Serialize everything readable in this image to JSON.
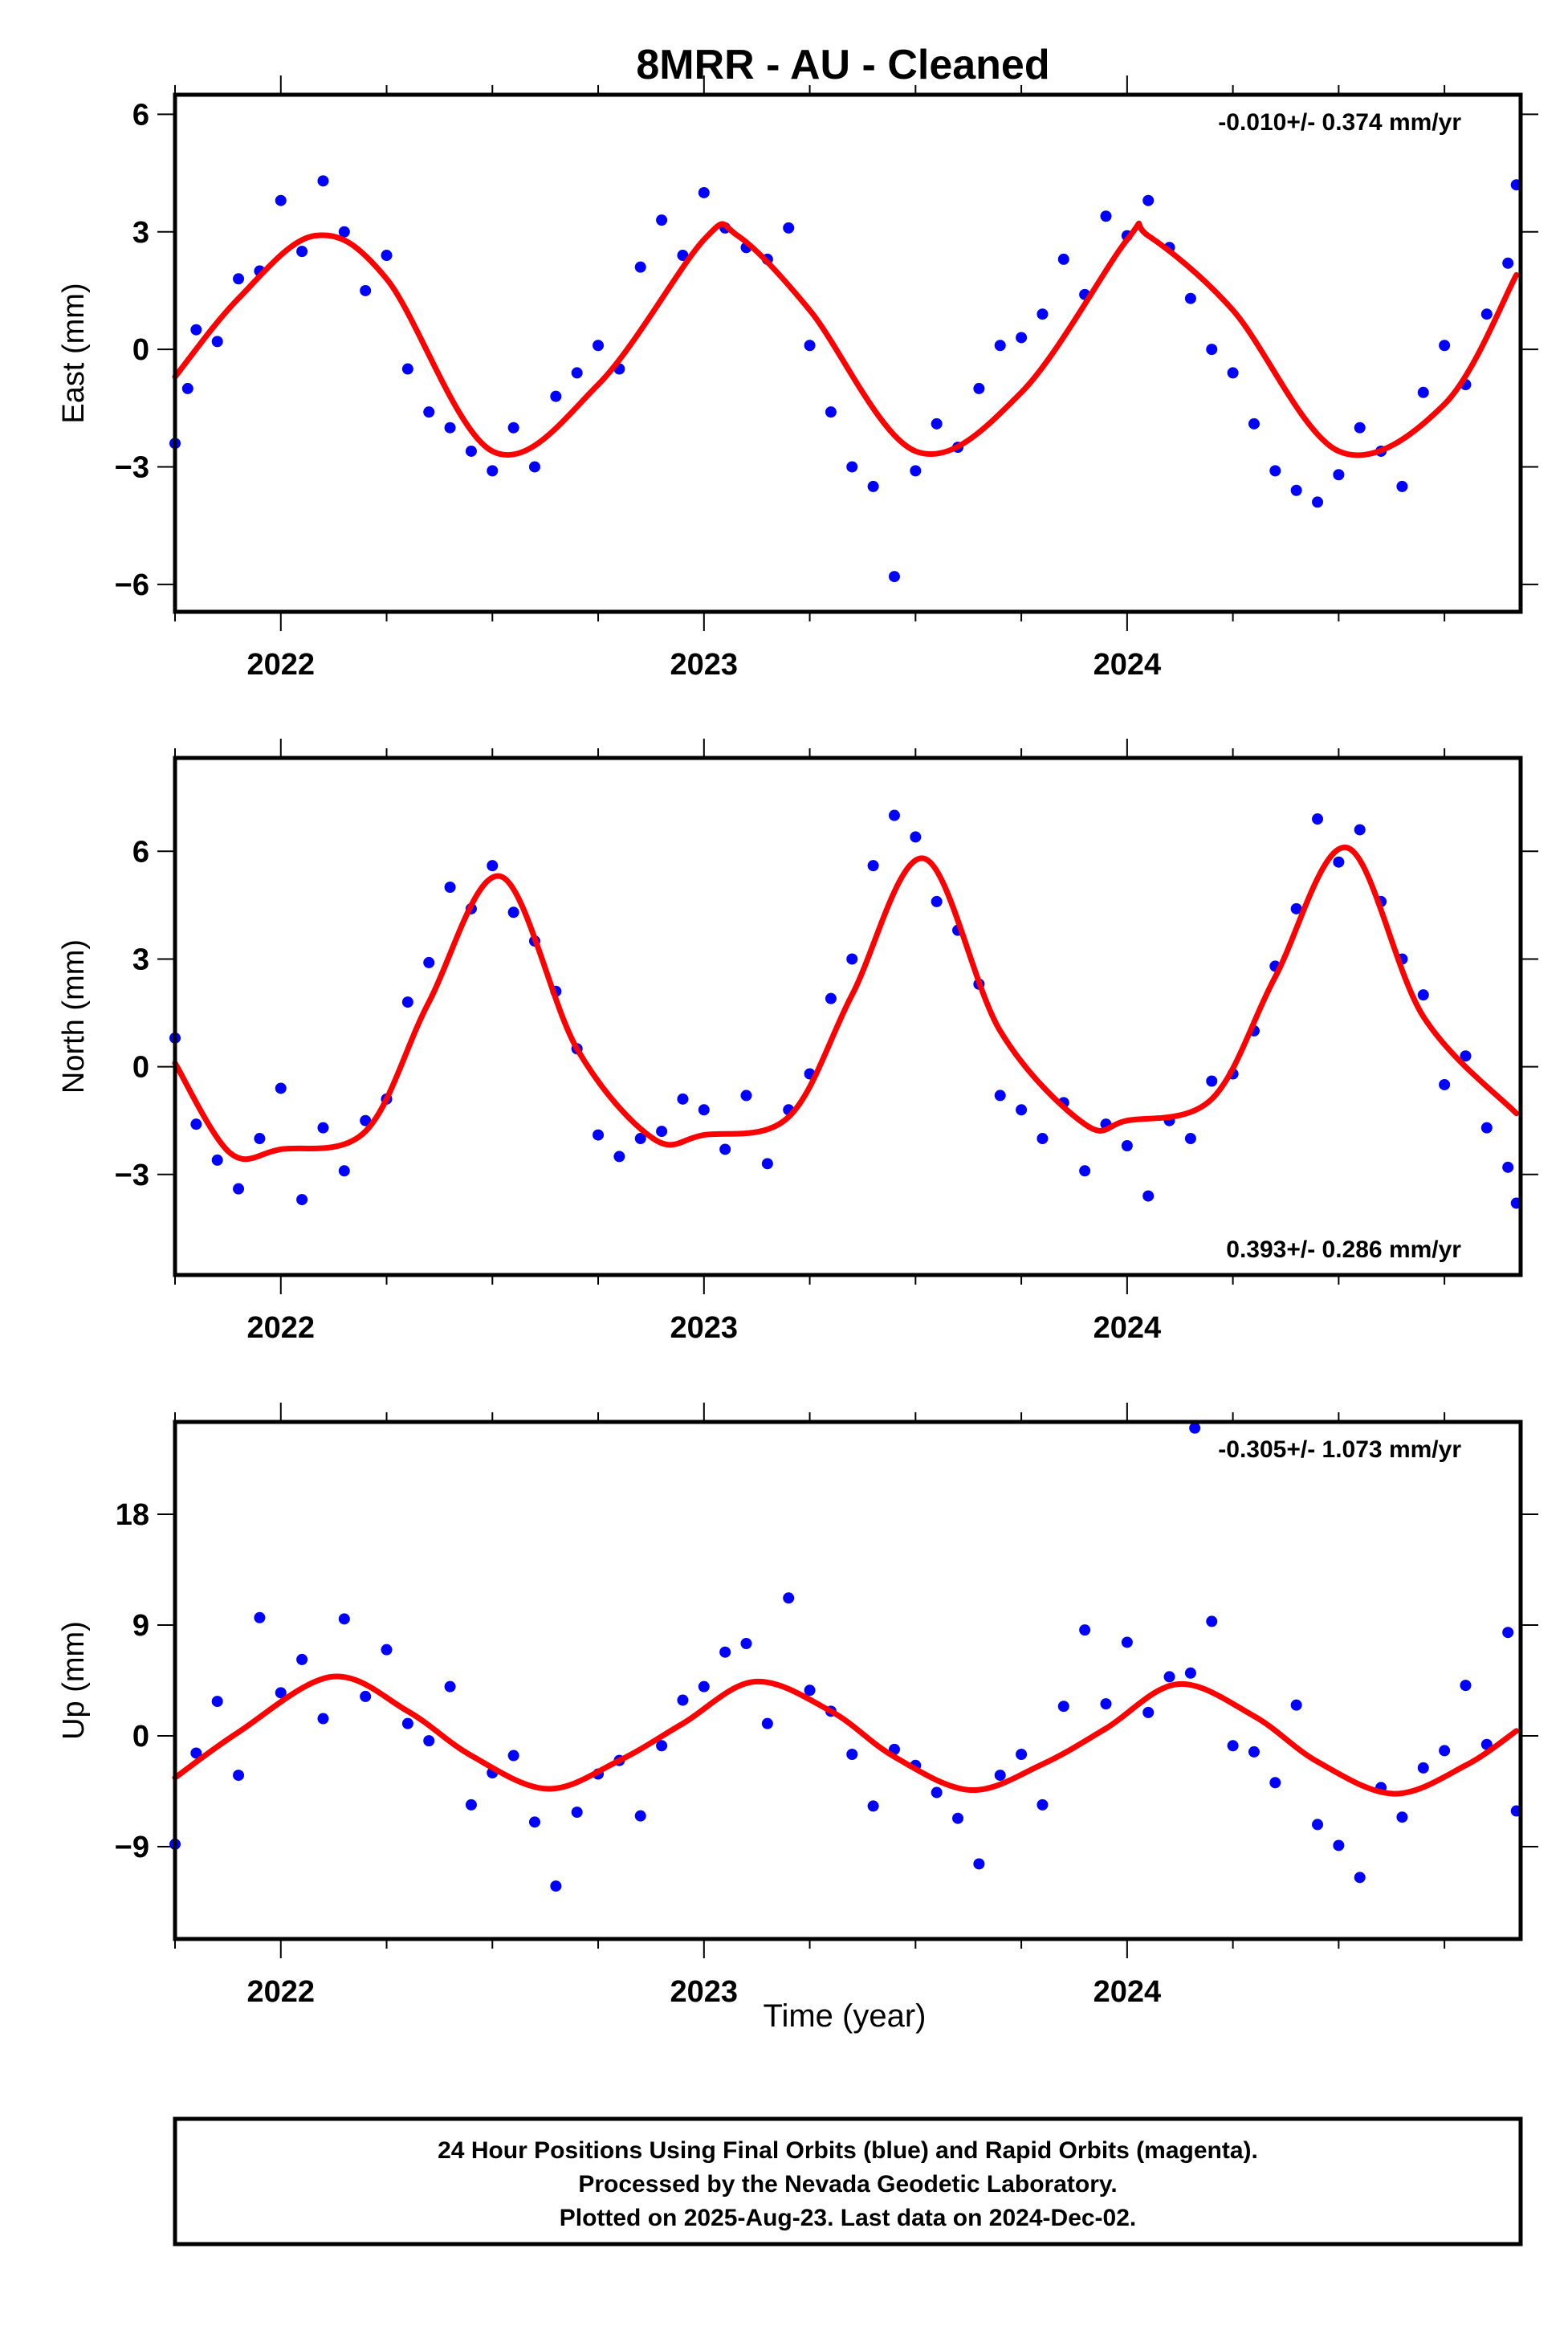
{
  "title": "8MRR  - AU - Cleaned",
  "x_axis_label": "Time (year)",
  "footer_lines": [
    "24 Hour Positions Using Final Orbits (blue) and Rapid Orbits (magenta).",
    "Processed by the Nevada Geodetic Laboratory.",
    "Plotted on 2025-Aug-23. Last data on 2024-Dec-02."
  ],
  "colors": {
    "points": "#0000ff",
    "model": "#ff0000",
    "frame": "#000000"
  },
  "chart_data": [
    {
      "type": "scatter",
      "ylabel": "East (mm)",
      "rate_text": "-0.010+/- 0.374 mm/yr",
      "rate_position": "top-right",
      "xlim": [
        2021.75,
        2024.93
      ],
      "ylim": [
        -6.7,
        6.5
      ],
      "x_ticks": [
        2022,
        2023,
        2024
      ],
      "x_tick_labels": [
        "2022",
        "2023",
        "2024"
      ],
      "y_ticks": [
        -6,
        -3,
        0,
        3,
        6
      ],
      "y_tick_labels": [
        "−6",
        "−3",
        "0",
        "3",
        "6"
      ],
      "grid": false,
      "model_curve": {
        "x": [
          2021.75,
          2021.9,
          2022.08,
          2022.25,
          2022.5,
          2022.75,
          2023.0,
          2023.08,
          2023.25,
          2023.5,
          2023.75,
          2024.0,
          2024.05,
          2024.25,
          2024.5,
          2024.75,
          2024.92
        ],
        "y": [
          -0.7,
          1.3,
          2.9,
          1.8,
          -2.6,
          -0.9,
          2.8,
          2.9,
          1.0,
          -2.6,
          -1.1,
          2.8,
          2.9,
          1.0,
          -2.6,
          -1.4,
          1.9
        ]
      },
      "points": {
        "x": [
          2021.75,
          2021.78,
          2021.8,
          2021.85,
          2021.9,
          2021.95,
          2022.0,
          2022.05,
          2022.1,
          2022.15,
          2022.2,
          2022.25,
          2022.3,
          2022.35,
          2022.4,
          2022.45,
          2022.5,
          2022.55,
          2022.6,
          2022.65,
          2022.7,
          2022.75,
          2022.8,
          2022.85,
          2022.9,
          2022.95,
          2023.0,
          2023.05,
          2023.1,
          2023.15,
          2023.2,
          2023.25,
          2023.3,
          2023.35,
          2023.4,
          2023.45,
          2023.5,
          2023.55,
          2023.6,
          2023.65,
          2023.7,
          2023.75,
          2023.8,
          2023.85,
          2023.9,
          2023.95,
          2024.0,
          2024.05,
          2024.1,
          2024.15,
          2024.2,
          2024.25,
          2024.3,
          2024.35,
          2024.4,
          2024.45,
          2024.5,
          2024.55,
          2024.6,
          2024.65,
          2024.7,
          2024.75,
          2024.8,
          2024.85,
          2024.9,
          2024.92
        ],
        "y": [
          -2.4,
          -1.0,
          0.5,
          0.2,
          1.8,
          2.0,
          3.8,
          2.5,
          4.3,
          3.0,
          1.5,
          2.4,
          -0.5,
          -1.6,
          -2.0,
          -2.6,
          -3.1,
          -2.0,
          -3.0,
          -1.2,
          -0.6,
          0.1,
          -0.5,
          2.1,
          3.3,
          2.4,
          4.0,
          3.1,
          2.6,
          2.3,
          3.1,
          0.1,
          -1.6,
          -3.0,
          -3.5,
          -5.8,
          -3.1,
          -1.9,
          -2.5,
          -1.0,
          0.1,
          0.3,
          0.9,
          2.3,
          1.4,
          3.4,
          2.9,
          3.8,
          2.6,
          1.3,
          0.0,
          -0.6,
          -1.9,
          -3.1,
          -3.6,
          -3.9,
          -3.2,
          -2.0,
          -2.6,
          -3.5,
          -1.1,
          0.1,
          -0.9,
          0.9,
          2.2,
          4.2
        ]
      }
    },
    {
      "type": "scatter",
      "ylabel": "North (mm)",
      "rate_text": "0.393+/- 0.286 mm/yr",
      "rate_position": "bottom-right",
      "xlim": [
        2021.75,
        2024.93
      ],
      "ylim": [
        -5.8,
        8.6
      ],
      "x_ticks": [
        2022,
        2023,
        2024
      ],
      "x_tick_labels": [
        "2022",
        "2023",
        "2024"
      ],
      "y_ticks": [
        -3,
        0,
        3,
        6
      ],
      "y_tick_labels": [
        "−3",
        "0",
        "3",
        "6"
      ],
      "grid": false,
      "model_curve": {
        "x": [
          2021.75,
          2021.88,
          2022.0,
          2022.2,
          2022.35,
          2022.52,
          2022.7,
          2022.88,
          2023.0,
          2023.2,
          2023.35,
          2023.52,
          2023.7,
          2023.9,
          2024.0,
          2024.2,
          2024.35,
          2024.52,
          2024.7,
          2024.92
        ],
        "y": [
          0.1,
          -2.4,
          -2.3,
          -1.8,
          1.8,
          5.3,
          0.5,
          -2.0,
          -1.9,
          -1.4,
          2.0,
          5.8,
          1.0,
          -1.6,
          -1.5,
          -0.9,
          2.5,
          6.1,
          1.4,
          -1.3
        ]
      },
      "points": {
        "x": [
          2021.75,
          2021.8,
          2021.85,
          2021.9,
          2021.95,
          2022.0,
          2022.05,
          2022.1,
          2022.15,
          2022.2,
          2022.25,
          2022.3,
          2022.35,
          2022.4,
          2022.45,
          2022.5,
          2022.55,
          2022.6,
          2022.65,
          2022.7,
          2022.75,
          2022.8,
          2022.85,
          2022.9,
          2022.95,
          2023.0,
          2023.05,
          2023.1,
          2023.15,
          2023.2,
          2023.25,
          2023.3,
          2023.35,
          2023.4,
          2023.45,
          2023.5,
          2023.55,
          2023.6,
          2023.65,
          2023.7,
          2023.75,
          2023.8,
          2023.85,
          2023.9,
          2023.95,
          2024.0,
          2024.05,
          2024.1,
          2024.15,
          2024.2,
          2024.25,
          2024.3,
          2024.35,
          2024.4,
          2024.45,
          2024.5,
          2024.55,
          2024.6,
          2024.65,
          2024.7,
          2024.75,
          2024.8,
          2024.85,
          2024.9,
          2024.92
        ],
        "y": [
          0.8,
          -1.6,
          -2.6,
          -3.4,
          -2.0,
          -0.6,
          -3.7,
          -1.7,
          -2.9,
          -1.5,
          -0.9,
          1.8,
          2.9,
          5.0,
          4.4,
          5.6,
          4.3,
          3.5,
          2.1,
          0.5,
          -1.9,
          -2.5,
          -2.0,
          -1.8,
          -0.9,
          -1.2,
          -2.3,
          -0.8,
          -2.7,
          -1.2,
          -0.2,
          1.9,
          3.0,
          5.6,
          7.0,
          6.4,
          4.6,
          3.8,
          2.3,
          -0.8,
          -1.2,
          -2.0,
          -1.0,
          -2.9,
          -1.6,
          -2.2,
          -3.6,
          -1.5,
          -2.0,
          -0.4,
          -0.2,
          1.0,
          2.8,
          4.4,
          6.9,
          5.7,
          6.6,
          4.6,
          3.0,
          2.0,
          -0.5,
          0.3,
          -1.7,
          -2.8,
          -3.8
        ]
      }
    },
    {
      "type": "scatter",
      "ylabel": "Up (mm)",
      "rate_text": "-0.305+/- 1.073 mm/yr",
      "rate_position": "top-right",
      "xlim": [
        2021.75,
        2024.93
      ],
      "ylim": [
        -16.5,
        25.5
      ],
      "x_ticks": [
        2022,
        2023,
        2024
      ],
      "x_tick_labels": [
        "2022",
        "2023",
        "2024"
      ],
      "y_ticks": [
        -9,
        0,
        9,
        18
      ],
      "y_tick_labels": [
        "−9",
        "0",
        "9",
        "18"
      ],
      "grid": false,
      "model_curve": {
        "x": [
          2021.75,
          2021.9,
          2022.12,
          2022.3,
          2022.45,
          2022.63,
          2022.8,
          2022.95,
          2023.12,
          2023.3,
          2023.45,
          2023.63,
          2023.8,
          2023.95,
          2024.12,
          2024.3,
          2024.45,
          2024.63,
          2024.8,
          2024.92
        ],
        "y": [
          -3.4,
          0.3,
          4.8,
          2.0,
          -1.6,
          -4.3,
          -2.0,
          1.0,
          4.4,
          2.0,
          -1.7,
          -4.4,
          -2.3,
          0.6,
          4.2,
          1.6,
          -2.1,
          -4.7,
          -2.4,
          0.4
        ]
      },
      "points": {
        "x": [
          2021.75,
          2021.8,
          2021.85,
          2021.9,
          2021.95,
          2022.0,
          2022.05,
          2022.1,
          2022.15,
          2022.2,
          2022.25,
          2022.3,
          2022.35,
          2022.4,
          2022.45,
          2022.5,
          2022.55,
          2022.6,
          2022.65,
          2022.7,
          2022.75,
          2022.8,
          2022.85,
          2022.9,
          2022.95,
          2023.0,
          2023.05,
          2023.1,
          2023.15,
          2023.2,
          2023.25,
          2023.3,
          2023.35,
          2023.4,
          2023.45,
          2023.5,
          2023.55,
          2023.6,
          2023.65,
          2023.7,
          2023.75,
          2023.8,
          2023.85,
          2023.9,
          2023.95,
          2024.0,
          2024.05,
          2024.1,
          2024.15,
          2024.2,
          2024.25,
          2024.3,
          2024.35,
          2024.4,
          2024.45,
          2024.5,
          2024.55,
          2024.6,
          2024.65,
          2024.7,
          2024.75,
          2024.8,
          2024.85,
          2024.9,
          2024.92,
          2024.16
        ],
        "y": [
          -8.8,
          -1.4,
          2.8,
          -3.2,
          9.6,
          3.5,
          6.2,
          1.4,
          9.5,
          3.2,
          7.0,
          1.0,
          -0.4,
          4.0,
          -5.6,
          -3.0,
          -1.6,
          -7.0,
          -12.2,
          -6.2,
          -3.1,
          -2.0,
          -6.5,
          -0.8,
          2.9,
          4.0,
          6.8,
          7.5,
          1.0,
          11.2,
          3.7,
          2.0,
          -1.5,
          -5.7,
          -1.1,
          -2.4,
          -4.6,
          -6.7,
          -10.4,
          -3.2,
          -1.5,
          -5.6,
          2.4,
          8.6,
          2.6,
          7.6,
          1.9,
          4.8,
          5.1,
          9.3,
          -0.8,
          -1.3,
          -3.8,
          2.5,
          -7.2,
          -8.9,
          -11.5,
          -4.2,
          -6.6,
          -2.6,
          -1.2,
          4.1,
          -0.7,
          8.4,
          -6.1,
          25.0
        ]
      }
    }
  ]
}
